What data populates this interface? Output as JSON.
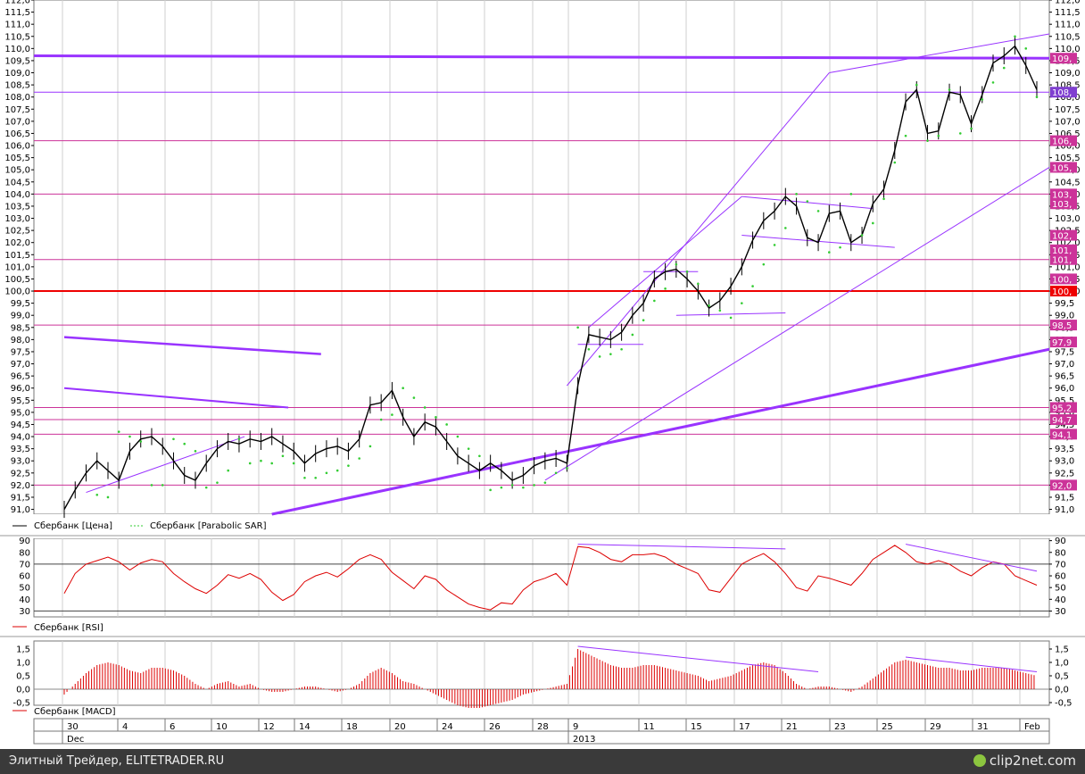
{
  "chart_data": [
    {
      "type": "line",
      "title": "",
      "ylim": [
        90.8,
        112.0
      ],
      "y_ticks": [
        "112,0",
        "111,5",
        "111,0",
        "110,5",
        "110,0",
        "109,5",
        "109,0",
        "108,5",
        "108,0",
        "107,5",
        "107,0",
        "106,5",
        "106,0",
        "105,5",
        "105,0",
        "104,5",
        "104,0",
        "103,5",
        "103,0",
        "102,5",
        "102,0",
        "101,5",
        "101,0",
        "100,5",
        "100,0",
        "99,5",
        "99,0",
        "98,5",
        "98,0",
        "97,5",
        "97,0",
        "96,5",
        "96,0",
        "95,5",
        "95,0",
        "94,5",
        "94,0",
        "93,5",
        "93,0",
        "92,5",
        "92,0",
        "91,5",
        "91,0"
      ],
      "y_ticks_right": [
        "112,0",
        "111,5",
        "111,0",
        "110,5",
        "110,0",
        "109,5",
        "109,0",
        "108,5",
        "108,0",
        "107,5",
        "107,0",
        "106,5",
        "106,0",
        "105,5",
        "105,0",
        "104,5",
        "104,0",
        "103,5",
        "103,0",
        "102,5",
        "102,0",
        "101,5",
        "101,0",
        "100,5",
        "100,0",
        "99,5",
        "99,0",
        "98,5",
        "98,0",
        "97,5",
        "97,0",
        "96,5",
        "96,0",
        "95,5",
        "95,0",
        "94,5",
        "94,0",
        "93,5",
        "93,0",
        "92,5",
        "92,0",
        "91,5",
        "91,0"
      ],
      "series": [
        {
          "name": "Сбербанк [Цена]",
          "color": "#000000",
          "values": [
            91.0,
            91.8,
            92.5,
            93.0,
            92.6,
            92.2,
            93.4,
            93.9,
            94.0,
            93.6,
            93.0,
            92.4,
            92.2,
            92.9,
            93.5,
            93.8,
            93.7,
            93.9,
            93.8,
            94.0,
            93.7,
            93.4,
            92.9,
            93.3,
            93.5,
            93.6,
            93.4,
            93.9,
            95.3,
            95.4,
            95.9,
            94.8,
            94.0,
            94.6,
            94.4,
            93.8,
            93.2,
            92.9,
            92.6,
            92.9,
            92.6,
            92.2,
            92.4,
            92.8,
            93.0,
            93.1,
            92.9,
            96.1,
            98.2,
            98.1,
            98.0,
            98.3,
            99.0,
            99.5,
            100.5,
            100.8,
            100.9,
            100.5,
            100.0,
            99.3,
            99.6,
            100.2,
            101.0,
            102.1,
            102.9,
            103.3,
            103.9,
            103.5,
            102.2,
            102.0,
            103.2,
            103.3,
            102.0,
            102.3,
            103.6,
            104.2,
            105.8,
            107.8,
            108.3,
            106.5,
            106.6,
            108.2,
            108.1,
            106.9,
            108.1,
            109.4,
            109.7,
            110.1,
            109.3,
            108.3
          ]
        },
        {
          "name": "Сбербанк [Parabolic SAR]",
          "color": "#33cc33",
          "values": [
            null,
            null,
            null,
            91.6,
            91.5,
            94.2,
            94.0,
            93.8,
            92.0,
            92.0,
            93.9,
            93.7,
            93.4,
            91.9,
            92.1,
            92.6,
            93.9,
            92.9,
            93.0,
            92.9,
            93.2,
            92.9,
            92.3,
            92.3,
            92.5,
            92.6,
            92.8,
            93.1,
            93.6,
            94.7,
            94.9,
            96.0,
            95.6,
            95.2,
            94.8,
            94.5,
            94.0,
            93.5,
            93.2,
            91.8,
            91.9,
            92.0,
            91.9,
            92.0,
            92.1,
            92.5,
            92.7,
            98.5,
            97.6,
            97.3,
            97.4,
            97.6,
            98.2,
            98.8,
            99.6,
            100.1,
            101.1,
            100.8,
            100.3,
            99.4,
            99.2,
            98.9,
            99.5,
            100.2,
            101.1,
            101.9,
            102.6,
            104.0,
            103.7,
            103.3,
            101.6,
            101.8,
            104.0,
            102.3,
            102.8,
            103.8,
            105.3,
            106.4,
            108.5,
            106.2,
            106.4,
            108.3,
            106.5,
            106.7,
            107.9,
            108.6,
            109.2,
            110.5,
            110.0,
            108.0
          ]
        }
      ],
      "legend": [
        "Сбербанк [Цена]",
        "Сбербанк [Parabolic SAR]"
      ],
      "right_labels": [
        "109,",
        "108,",
        "106,",
        "105,",
        "103,",
        "103,",
        "102,",
        "101,",
        "101,",
        "100,",
        "100,",
        "98,5",
        "97,9",
        "95,2",
        "94,7",
        "94,1",
        "92,0"
      ],
      "colors": {
        "support_resistance": "#cc3399",
        "key_level": "#ee0000",
        "trendline": "#9933ff",
        "price": "#000000",
        "sar": "#33cc33"
      }
    },
    {
      "type": "line",
      "title": "",
      "ylim": [
        25,
        92
      ],
      "y_ticks": [
        "90",
        "80",
        "70",
        "60",
        "50",
        "40",
        "30"
      ],
      "y_ticks_right": [
        "90",
        "80",
        "70",
        "60",
        "50",
        "40",
        "30"
      ],
      "series": [
        {
          "name": "Сбербанк [RSI]",
          "color": "#dd0000",
          "values": [
            45,
            62,
            70,
            73,
            76,
            72,
            65,
            71,
            74,
            72,
            62,
            55,
            49,
            45,
            52,
            61,
            58,
            62,
            57,
            46,
            39,
            44,
            55,
            60,
            63,
            59,
            66,
            74,
            78,
            74,
            63,
            56,
            49,
            60,
            57,
            48,
            42,
            36,
            33,
            31,
            37,
            36,
            48,
            55,
            58,
            62,
            52,
            85,
            84,
            80,
            74,
            72,
            78,
            78,
            79,
            76,
            70,
            66,
            62,
            48,
            46,
            58,
            70,
            75,
            79,
            72,
            62,
            50,
            47,
            60,
            58,
            55,
            52,
            62,
            74,
            80,
            86,
            80,
            72,
            70,
            73,
            70,
            64,
            60,
            67,
            72,
            70,
            60,
            56,
            52
          ]
        }
      ],
      "legend": [
        "Сбербанк [RSI]"
      ],
      "reference_levels": [
        70,
        30
      ]
    },
    {
      "type": "bar",
      "title": "",
      "ylim": [
        -0.6,
        1.8
      ],
      "y_ticks": [
        "1,5",
        "1,0",
        "0,5",
        "0,0",
        "-0,5"
      ],
      "y_ticks_right": [
        "1,5",
        "1,0",
        "0,5",
        "0,0",
        "-0,5"
      ],
      "series": [
        {
          "name": "Сбербанк [MACD]",
          "color": "#dd0000",
          "values": [
            -0.2,
            0.2,
            0.6,
            0.9,
            1.0,
            0.9,
            0.7,
            0.6,
            0.8,
            0.8,
            0.7,
            0.5,
            0.2,
            0.0,
            0.2,
            0.3,
            0.1,
            0.2,
            0.0,
            -0.1,
            -0.1,
            0.0,
            0.1,
            0.1,
            0.0,
            -0.1,
            0.0,
            0.2,
            0.6,
            0.8,
            0.6,
            0.3,
            0.2,
            0.0,
            -0.2,
            -0.4,
            -0.6,
            -0.7,
            -0.7,
            -0.6,
            -0.5,
            -0.4,
            -0.2,
            -0.1,
            0.0,
            0.1,
            0.2,
            1.5,
            1.3,
            1.1,
            0.9,
            0.8,
            0.8,
            0.9,
            0.9,
            0.8,
            0.7,
            0.6,
            0.5,
            0.3,
            0.4,
            0.5,
            0.7,
            0.9,
            1.0,
            0.9,
            0.6,
            0.2,
            0.0,
            0.1,
            0.1,
            0.0,
            -0.1,
            0.1,
            0.4,
            0.7,
            1.0,
            1.1,
            1.0,
            0.9,
            0.8,
            0.8,
            0.7,
            0.7,
            0.8,
            0.8,
            0.8,
            0.7,
            0.6,
            0.5
          ]
        }
      ],
      "legend": [
        "Сбербанк [MACD]"
      ]
    }
  ],
  "x_axis": {
    "top_labels": [
      "30",
      "4",
      "6",
      "10",
      "12",
      "14",
      "18",
      "20",
      "24",
      "26",
      "28",
      "9",
      "11",
      "15",
      "17",
      "21",
      "23",
      "25",
      "29",
      "31",
      "Feb"
    ],
    "bottom_labels": [
      "Dec",
      "2013"
    ]
  },
  "footer": {
    "credit": "Элитный Трейдер, ELITETRADER.RU",
    "brand": "clip2net.com"
  }
}
